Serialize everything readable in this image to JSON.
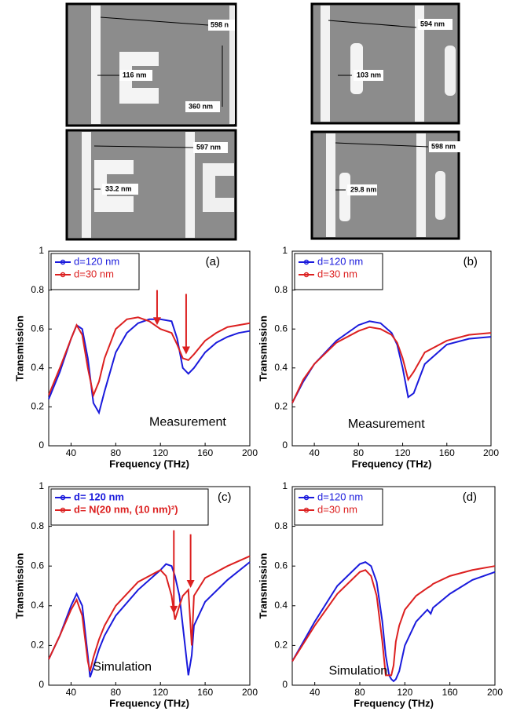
{
  "images": [
    {
      "labels": [
        "598 n",
        "116 nm",
        "360 nm"
      ]
    },
    {
      "labels": [
        "597 nm",
        "33.2 nm"
      ]
    },
    {
      "labels": [
        "594 nm",
        "103 nm"
      ]
    },
    {
      "labels": [
        "598 nm",
        "29.8 nm"
      ]
    }
  ],
  "chart_data": [
    {
      "type": "line",
      "panel": "(a)",
      "annotation": "Measurement",
      "x_label": "Frequency (THz)",
      "y_label": "Transmission",
      "xlim": [
        20,
        200
      ],
      "xticks": [
        40,
        80,
        120,
        160,
        200
      ],
      "ylim": [
        0,
        1
      ],
      "yticks": [
        0,
        0.2,
        0.4,
        0.6,
        0.8,
        1
      ],
      "x": [
        20,
        30,
        40,
        45,
        50,
        55,
        60,
        65,
        70,
        80,
        90,
        100,
        110,
        120,
        130,
        135,
        140,
        145,
        150,
        160,
        170,
        180,
        190,
        200
      ],
      "series": [
        {
          "name": "d=120 nm",
          "color": "#1a1adc",
          "values": [
            0.24,
            0.38,
            0.55,
            0.62,
            0.6,
            0.45,
            0.22,
            0.17,
            0.28,
            0.48,
            0.58,
            0.63,
            0.65,
            0.65,
            0.64,
            0.55,
            0.4,
            0.37,
            0.4,
            0.48,
            0.53,
            0.56,
            0.58,
            0.59
          ]
        },
        {
          "name": "d=30 nm",
          "color": "#dc2020",
          "values": [
            0.26,
            0.4,
            0.55,
            0.62,
            0.57,
            0.4,
            0.26,
            0.33,
            0.45,
            0.6,
            0.65,
            0.66,
            0.64,
            0.6,
            0.58,
            0.52,
            0.45,
            0.44,
            0.47,
            0.54,
            0.58,
            0.61,
            0.62,
            0.63
          ]
        }
      ]
    },
    {
      "type": "line",
      "panel": "(b)",
      "annotation": "Measurement",
      "x_label": "Frequency (THz)",
      "y_label": "Transmission",
      "xlim": [
        20,
        200
      ],
      "xticks": [
        40,
        80,
        120,
        160,
        200
      ],
      "ylim": [
        0,
        1
      ],
      "yticks": [
        0,
        0.2,
        0.4,
        0.6,
        0.8,
        1
      ],
      "x": [
        20,
        30,
        40,
        60,
        80,
        90,
        100,
        110,
        115,
        120,
        125,
        130,
        140,
        160,
        180,
        200
      ],
      "series": [
        {
          "name": "d=120 nm",
          "color": "#1a1adc",
          "values": [
            0.22,
            0.33,
            0.42,
            0.54,
            0.62,
            0.64,
            0.63,
            0.58,
            0.52,
            0.4,
            0.25,
            0.27,
            0.42,
            0.52,
            0.55,
            0.56
          ]
        },
        {
          "name": "d=30 nm",
          "color": "#dc2020",
          "values": [
            0.22,
            0.34,
            0.42,
            0.53,
            0.59,
            0.61,
            0.6,
            0.57,
            0.53,
            0.45,
            0.34,
            0.38,
            0.48,
            0.54,
            0.57,
            0.58
          ]
        }
      ]
    },
    {
      "type": "line",
      "panel": "(c)",
      "annotation": "Simulation",
      "x_label": "Frequency (THz)",
      "y_label": "Transmission",
      "xlim": [
        20,
        200
      ],
      "xticks": [
        40,
        80,
        120,
        160,
        200
      ],
      "ylim": [
        0,
        1
      ],
      "yticks": [
        0,
        0.2,
        0.4,
        0.6,
        0.8,
        1
      ],
      "x": [
        20,
        30,
        40,
        45,
        50,
        55,
        57,
        60,
        65,
        70,
        80,
        100,
        120,
        125,
        130,
        133,
        137,
        140,
        145,
        148,
        150,
        160,
        180,
        200
      ],
      "series": [
        {
          "name": "d= 120 nm",
          "color": "#1a1adc",
          "values": [
            0.13,
            0.25,
            0.4,
            0.46,
            0.4,
            0.15,
            0.04,
            0.09,
            0.18,
            0.25,
            0.35,
            0.48,
            0.58,
            0.61,
            0.6,
            0.55,
            0.45,
            0.3,
            0.05,
            0.15,
            0.3,
            0.42,
            0.53,
            0.62
          ]
        },
        {
          "name": "d= N(20 nm, (10 nm)²)",
          "color": "#dc2020",
          "values": [
            0.13,
            0.25,
            0.38,
            0.43,
            0.35,
            0.12,
            0.07,
            0.14,
            0.23,
            0.3,
            0.4,
            0.52,
            0.58,
            0.55,
            0.45,
            0.33,
            0.4,
            0.45,
            0.48,
            0.2,
            0.45,
            0.54,
            0.6,
            0.65
          ]
        }
      ]
    },
    {
      "type": "line",
      "panel": "(d)",
      "annotation": "Simulation",
      "x_label": "Frequency (THz)",
      "y_label": "Transmission",
      "xlim": [
        20,
        200
      ],
      "xticks": [
        40,
        80,
        120,
        160,
        200
      ],
      "ylim": [
        0,
        1
      ],
      "yticks": [
        0,
        0.2,
        0.4,
        0.6,
        0.8,
        1
      ],
      "x": [
        20,
        40,
        60,
        80,
        85,
        90,
        95,
        100,
        103,
        106,
        108,
        110,
        112,
        115,
        120,
        130,
        140,
        143,
        145,
        160,
        180,
        200
      ],
      "series": [
        {
          "name": "d=120 nm",
          "color": "#1a1adc",
          "values": [
            0.12,
            0.32,
            0.5,
            0.61,
            0.62,
            0.6,
            0.52,
            0.32,
            0.15,
            0.05,
            0.03,
            0.02,
            0.03,
            0.07,
            0.2,
            0.32,
            0.38,
            0.36,
            0.39,
            0.46,
            0.53,
            0.57
          ]
        },
        {
          "name": "d=30 nm",
          "color": "#dc2020",
          "values": [
            0.12,
            0.3,
            0.46,
            0.57,
            0.58,
            0.55,
            0.45,
            0.22,
            0.05,
            0.05,
            0.05,
            0.1,
            0.22,
            0.3,
            0.38,
            0.45,
            0.49,
            0.5,
            0.51,
            0.55,
            0.58,
            0.6
          ]
        }
      ]
    }
  ]
}
